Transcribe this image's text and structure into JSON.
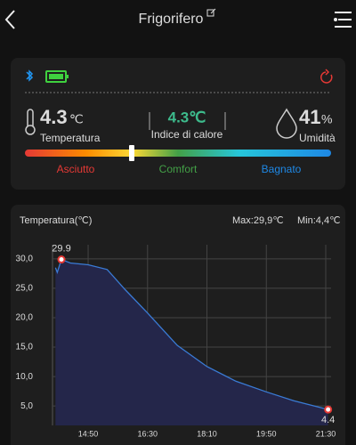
{
  "header": {
    "title": "Frigorifero"
  },
  "status": {
    "temperature": {
      "value": "4.3",
      "unit": "℃",
      "label": "Temperatura"
    },
    "heat_index": {
      "value": "4.3℃",
      "label": "Indice di calore"
    },
    "humidity": {
      "value": "41",
      "unit": "%",
      "label": "Umidità"
    },
    "scale": {
      "labels": [
        "Asciutto",
        "Comfort",
        "Bagnato"
      ],
      "colors": [
        "#e53935",
        "#43a047",
        "#1e88e5"
      ]
    }
  },
  "chart_data": {
    "type": "line",
    "title": "Temperatura(℃)",
    "max_label": "Max:29,9℃",
    "min_label": "Min:4,4℃",
    "x": [
      "13:55",
      "13:58",
      "14:05",
      "14:20",
      "14:50",
      "15:22",
      "15:52",
      "16:30",
      "17:20",
      "18:10",
      "18:59",
      "19:50",
      "20:36",
      "21:34"
    ],
    "values": [
      28.5,
      27.7,
      29.9,
      29.3,
      29.0,
      28.2,
      24.8,
      20.8,
      15.3,
      11.7,
      9.2,
      7.4,
      5.9,
      4.4
    ],
    "color": "#3a7bd5",
    "fill": "#24264a",
    "max": {
      "x": "14:05",
      "value": 29.9
    },
    "min": {
      "x": "21:34",
      "value": 4.4
    },
    "xlim": [
      "13:50",
      "21:39"
    ],
    "xticks": [
      "14:50",
      "16:30",
      "18:10",
      "19:50",
      "21:30"
    ],
    "ylim": [
      1.7,
      32.4
    ],
    "yticks": [
      {
        "value": 5,
        "label": "5,0"
      },
      {
        "value": 10,
        "label": "10,0"
      },
      {
        "value": 15,
        "label": "15,0"
      },
      {
        "value": 20,
        "label": "20,0"
      },
      {
        "value": 25,
        "label": "25,0"
      },
      {
        "value": 30,
        "label": "30,0"
      }
    ],
    "grid": true
  }
}
